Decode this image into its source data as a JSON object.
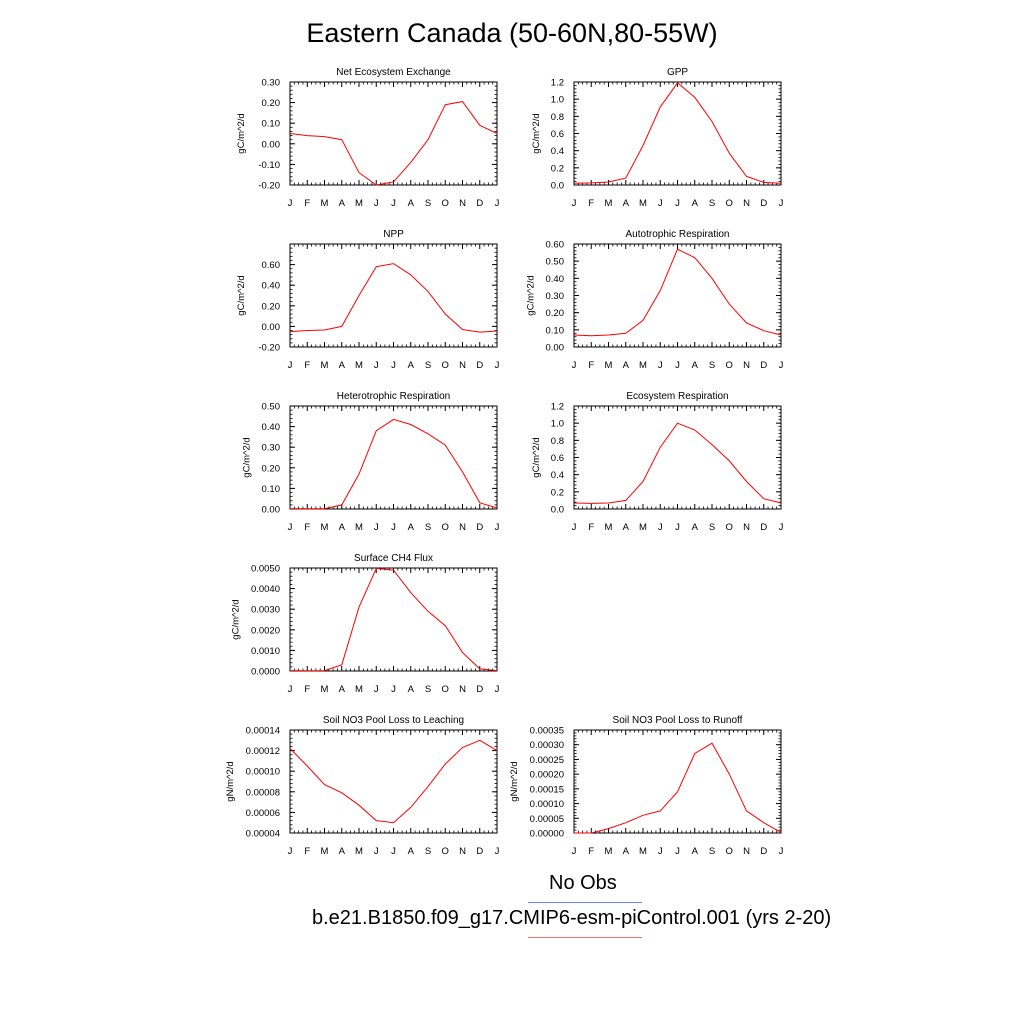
{
  "title": "Eastern Canada (50-60N,80-55W)",
  "months": [
    "J",
    "F",
    "M",
    "A",
    "M",
    "J",
    "J",
    "A",
    "S",
    "O",
    "N",
    "D",
    "J"
  ],
  "chart_data": [
    {
      "type": "line",
      "title": "Net Ecosystem Exchange",
      "ylabel": "gC/m^2/d",
      "ylim": [
        -0.2,
        0.3
      ],
      "yticks": [
        "-0.20",
        "-0.10",
        "0.00",
        "0.10",
        "0.20",
        "0.30"
      ],
      "x": [
        "J",
        "F",
        "M",
        "A",
        "M",
        "J",
        "J",
        "A",
        "S",
        "O",
        "N",
        "D",
        "J"
      ],
      "series": [
        {
          "values": [
            0.05,
            0.04,
            0.035,
            0.02,
            -0.14,
            -0.2,
            -0.185,
            -0.09,
            0.02,
            0.19,
            0.205,
            0.09,
            0.05
          ]
        }
      ]
    },
    {
      "type": "line",
      "title": "GPP",
      "ylabel": "gC/m^2/d",
      "ylim": [
        0,
        1.2
      ],
      "yticks": [
        "0.0",
        "0.2",
        "0.4",
        "0.6",
        "0.8",
        "1.0",
        "1.2"
      ],
      "x": [
        "J",
        "F",
        "M",
        "A",
        "M",
        "J",
        "J",
        "A",
        "S",
        "O",
        "N",
        "D",
        "J"
      ],
      "series": [
        {
          "values": [
            0.02,
            0.025,
            0.035,
            0.08,
            0.46,
            0.91,
            1.19,
            1.02,
            0.74,
            0.37,
            0.1,
            0.03,
            0.02
          ]
        }
      ]
    },
    {
      "type": "line",
      "title": "NPP",
      "ylabel": "gC/m^2/d",
      "ylim": [
        -0.2,
        0.8
      ],
      "yticks": [
        "-0.20",
        "0.00",
        "0.20",
        "0.40",
        "0.60"
      ],
      "x": [
        "J",
        "F",
        "M",
        "A",
        "M",
        "J",
        "J",
        "A",
        "S",
        "O",
        "N",
        "D",
        "J"
      ],
      "series": [
        {
          "values": [
            -0.05,
            -0.04,
            -0.035,
            0.0,
            0.3,
            0.58,
            0.61,
            0.5,
            0.34,
            0.12,
            -0.03,
            -0.055,
            -0.045
          ]
        }
      ]
    },
    {
      "type": "line",
      "title": "Autotrophic Respiration",
      "ylabel": "gC/m^2/d",
      "ylim": [
        0,
        0.6
      ],
      "yticks": [
        "0.00",
        "0.10",
        "0.20",
        "0.30",
        "0.40",
        "0.50",
        "0.60"
      ],
      "x": [
        "J",
        "F",
        "M",
        "A",
        "M",
        "J",
        "J",
        "A",
        "S",
        "O",
        "N",
        "D",
        "J"
      ],
      "series": [
        {
          "values": [
            0.07,
            0.065,
            0.07,
            0.08,
            0.155,
            0.33,
            0.57,
            0.52,
            0.4,
            0.25,
            0.14,
            0.095,
            0.07
          ]
        }
      ]
    },
    {
      "type": "line",
      "title": "Heterotrophic Respiration",
      "ylabel": "gC/m^2/d",
      "ylim": [
        0,
        0.5
      ],
      "yticks": [
        "0.00",
        "0.10",
        "0.20",
        "0.30",
        "0.40",
        "0.50"
      ],
      "x": [
        "J",
        "F",
        "M",
        "A",
        "M",
        "J",
        "J",
        "A",
        "S",
        "O",
        "N",
        "D",
        "J"
      ],
      "series": [
        {
          "values": [
            0.002,
            0.001,
            0.001,
            0.02,
            0.17,
            0.38,
            0.435,
            0.41,
            0.365,
            0.31,
            0.18,
            0.03,
            0.005
          ]
        }
      ]
    },
    {
      "type": "line",
      "title": "Ecosystem Respiration",
      "ylabel": "gC/m^2/d",
      "ylim": [
        0,
        1.2
      ],
      "yticks": [
        "0.0",
        "0.2",
        "0.4",
        "0.6",
        "0.8",
        "1.0",
        "1.2"
      ],
      "x": [
        "J",
        "F",
        "M",
        "A",
        "M",
        "J",
        "J",
        "A",
        "S",
        "O",
        "N",
        "D",
        "J"
      ],
      "series": [
        {
          "values": [
            0.07,
            0.065,
            0.07,
            0.1,
            0.32,
            0.72,
            1.0,
            0.92,
            0.75,
            0.56,
            0.32,
            0.12,
            0.07
          ]
        }
      ]
    },
    {
      "type": "line",
      "title": "Surface CH4 Flux",
      "ylabel": "gC/m^2/d",
      "ylim": [
        0,
        0.005
      ],
      "yticks": [
        "0.0000",
        "0.0010",
        "0.0020",
        "0.0030",
        "0.0040",
        "0.0050"
      ],
      "x": [
        "J",
        "F",
        "M",
        "A",
        "M",
        "J",
        "J",
        "A",
        "S",
        "O",
        "N",
        "D",
        "J"
      ],
      "series": [
        {
          "values": [
            2e-05,
            1e-05,
            2e-05,
            0.0003,
            0.0031,
            0.00498,
            0.0049,
            0.0038,
            0.0029,
            0.0022,
            0.0009,
            0.0001,
            2e-05
          ]
        }
      ]
    },
    {
      "type": "line",
      "title": "Soil NO3 Pool Loss to Leaching",
      "ylabel": "gN/m^2/d",
      "ylim": [
        4e-05,
        0.00014
      ],
      "yticks": [
        "0.00004",
        "0.00006",
        "0.00008",
        "0.00010",
        "0.00012",
        "0.00014"
      ],
      "x": [
        "J",
        "F",
        "M",
        "A",
        "M",
        "J",
        "J",
        "A",
        "S",
        "O",
        "N",
        "D",
        "J"
      ],
      "series": [
        {
          "values": [
            0.000122,
            0.000105,
            8.7e-05,
            7.9e-05,
            6.7e-05,
            5.2e-05,
            5e-05,
            6.5e-05,
            8.5e-05,
            0.000107,
            0.000123,
            0.00013,
            0.00012
          ]
        }
      ]
    },
    {
      "type": "line",
      "title": "Soil NO3 Pool Loss to Runoff",
      "ylabel": "gN/m^2/d",
      "ylim": [
        0,
        0.00035
      ],
      "yticks": [
        "0.00000",
        "0.00005",
        "0.00010",
        "0.00015",
        "0.00020",
        "0.00025",
        "0.00030",
        "0.00035"
      ],
      "x": [
        "J",
        "F",
        "M",
        "A",
        "M",
        "J",
        "J",
        "A",
        "S",
        "O",
        "N",
        "D",
        "J"
      ],
      "series": [
        {
          "values": [
            0.0,
            0.0,
            1.5e-05,
            3.5e-05,
            6e-05,
            7.5e-05,
            0.00014,
            0.00027,
            0.000305,
            0.0002,
            7.5e-05,
            3.5e-05,
            2e-06
          ]
        }
      ]
    }
  ],
  "legend": [
    {
      "label": "No Obs",
      "color": "#6b7dff"
    },
    {
      "label": "b.e21.B1850.f09_g17.CMIP6-esm-piControl.001 (yrs 2-20)",
      "color": "#ff6b6b"
    }
  ],
  "line_color": "#ff0000"
}
